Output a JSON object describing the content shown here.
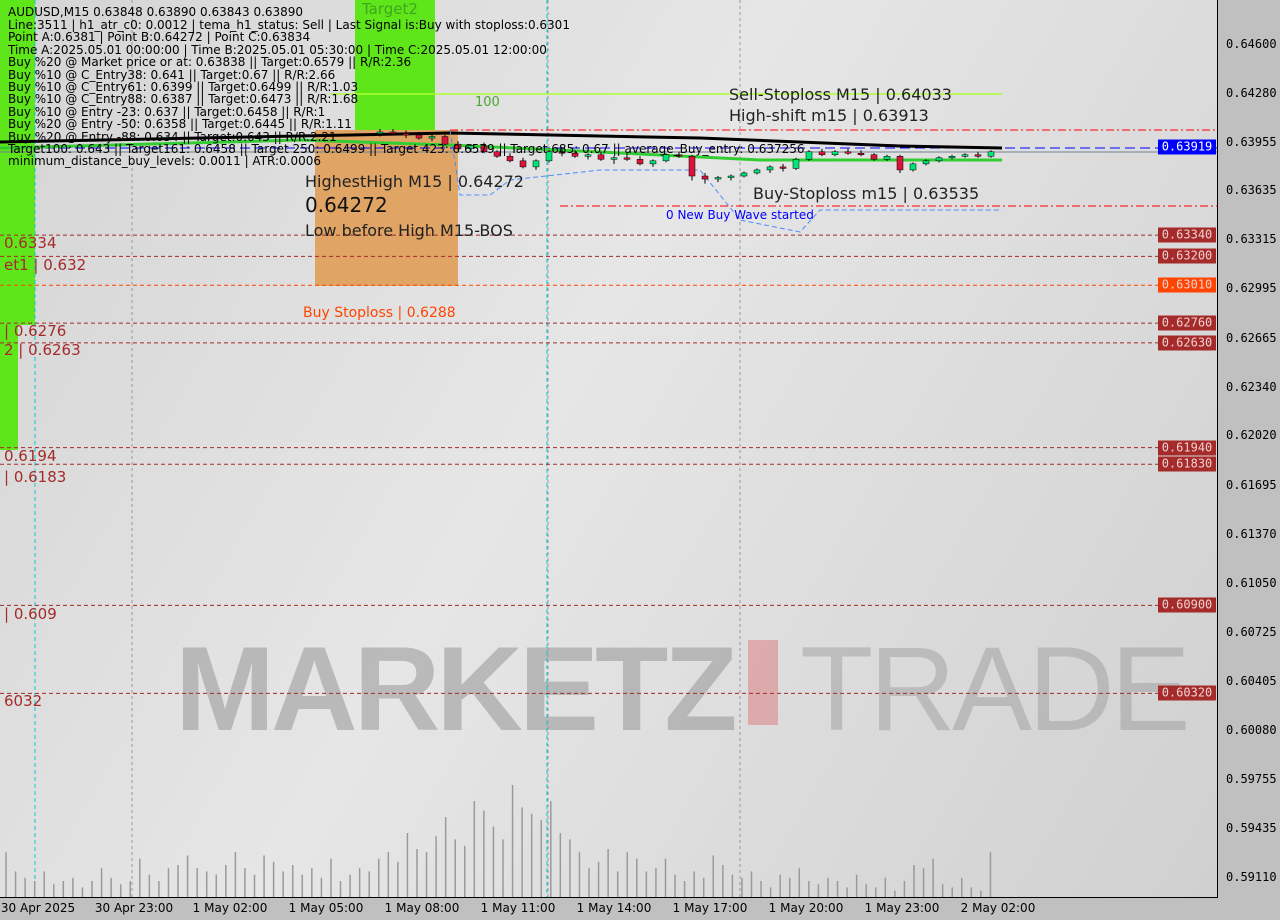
{
  "chart_data": {
    "type": "candlestick",
    "symbol_line": "AUDUSD,M15  0.63848 0.63890 0.63843 0.63890",
    "ylim": [
      0.5895,
      0.649
    ],
    "y_ticks": [
      "0.64600",
      "0.64280",
      "0.63955",
      "0.63635",
      "0.63315",
      "0.62995",
      "0.62665",
      "0.62340",
      "0.62020",
      "0.61695",
      "0.61370",
      "0.61050",
      "0.60725",
      "0.60405",
      "0.60080",
      "0.59755",
      "0.59435",
      "0.59110"
    ],
    "x_ticks": [
      "30 Apr 2025",
      "30 Apr 23:00",
      "1 May 02:00",
      "1 May 05:00",
      "1 May 08:00",
      "1 May 11:00",
      "1 May 14:00",
      "1 May 17:00",
      "1 May 20:00",
      "1 May 23:00",
      "2 May 02:00"
    ],
    "current_price": {
      "label": "0.63919",
      "color": "#0000ff"
    },
    "price_badges": [
      {
        "label": "0.63340",
        "color": "#a52a2a"
      },
      {
        "label": "0.63200",
        "color": "#a52a2a"
      },
      {
        "label": "0.63010",
        "color": "#ff4500"
      },
      {
        "label": "0.62760",
        "color": "#a52a2a"
      },
      {
        "label": "0.62630",
        "color": "#a52a2a"
      },
      {
        "label": "0.61940",
        "color": "#a52a2a"
      },
      {
        "label": "0.61830",
        "color": "#a52a2a"
      },
      {
        "label": "0.60900",
        "color": "#a52a2a"
      },
      {
        "label": "0.60320",
        "color": "#a52a2a"
      }
    ],
    "left_level_labels": [
      "0.6334",
      "et1 | 0.632",
      "| 0.6276",
      "2 | 0.6263",
      "0.6194",
      "| 0.6183",
      "| 0.609",
      "6032"
    ],
    "candles": [
      [
        0.6401,
        0.6404,
        0.6399,
        0.6402
      ],
      [
        0.6402,
        0.6404,
        0.64,
        0.6401
      ],
      [
        0.6401,
        0.6403,
        0.6398,
        0.64
      ],
      [
        0.64,
        0.6402,
        0.6397,
        0.6398
      ],
      [
        0.6398,
        0.6401,
        0.6396,
        0.6399
      ],
      [
        0.6399,
        0.64,
        0.6393,
        0.6394
      ],
      [
        0.6394,
        0.6396,
        0.639,
        0.6391
      ],
      [
        0.6391,
        0.6394,
        0.6389,
        0.6393
      ],
      [
        0.6393,
        0.6395,
        0.6388,
        0.6389
      ],
      [
        0.6389,
        0.639,
        0.6385,
        0.6386
      ],
      [
        0.6386,
        0.6388,
        0.6382,
        0.6383
      ],
      [
        0.6383,
        0.6385,
        0.6378,
        0.6379
      ],
      [
        0.6379,
        0.6384,
        0.6377,
        0.6383
      ],
      [
        0.6383,
        0.639,
        0.6382,
        0.6389
      ],
      [
        0.6389,
        0.6392,
        0.6386,
        0.6388
      ],
      [
        0.6388,
        0.639,
        0.6385,
        0.6386
      ],
      [
        0.6386,
        0.6388,
        0.6384,
        0.6387
      ],
      [
        0.6387,
        0.6389,
        0.6383,
        0.6384
      ],
      [
        0.6384,
        0.6386,
        0.6381,
        0.6385
      ],
      [
        0.6385,
        0.6388,
        0.6383,
        0.6384
      ],
      [
        0.6384,
        0.6386,
        0.638,
        0.6381
      ],
      [
        0.6381,
        0.6384,
        0.6379,
        0.6383
      ],
      [
        0.6383,
        0.6388,
        0.6382,
        0.6387
      ],
      [
        0.6387,
        0.6389,
        0.6385,
        0.6386
      ],
      [
        0.6386,
        0.6387,
        0.637,
        0.6373
      ],
      [
        0.6373,
        0.6375,
        0.6368,
        0.6371
      ],
      [
        0.6371,
        0.6373,
        0.6369,
        0.6372
      ],
      [
        0.6372,
        0.6374,
        0.637,
        0.6373
      ],
      [
        0.6373,
        0.6376,
        0.6372,
        0.6375
      ],
      [
        0.6375,
        0.6378,
        0.6374,
        0.6377
      ],
      [
        0.6377,
        0.638,
        0.6375,
        0.6379
      ],
      [
        0.6379,
        0.6381,
        0.6376,
        0.6378
      ],
      [
        0.6378,
        0.6385,
        0.6377,
        0.6384
      ],
      [
        0.6384,
        0.639,
        0.6383,
        0.6389
      ],
      [
        0.6389,
        0.6391,
        0.6386,
        0.6387
      ],
      [
        0.6387,
        0.639,
        0.6386,
        0.6389
      ],
      [
        0.6389,
        0.6391,
        0.6387,
        0.6388
      ],
      [
        0.6388,
        0.639,
        0.6386,
        0.6387
      ],
      [
        0.6387,
        0.6388,
        0.6383,
        0.6384
      ],
      [
        0.6384,
        0.6387,
        0.6383,
        0.6386
      ],
      [
        0.6386,
        0.6387,
        0.6375,
        0.6377
      ],
      [
        0.6377,
        0.6382,
        0.6376,
        0.6381
      ],
      [
        0.6381,
        0.6384,
        0.638,
        0.6383
      ],
      [
        0.6383,
        0.6386,
        0.6382,
        0.6385
      ],
      [
        0.6385,
        0.6387,
        0.6384,
        0.6386
      ],
      [
        0.6386,
        0.6388,
        0.6385,
        0.6387
      ],
      [
        0.6387,
        0.6389,
        0.6385,
        0.6386
      ],
      [
        0.6386,
        0.639,
        0.6385,
        0.6389
      ]
    ],
    "volume": [
      14,
      8,
      6,
      5,
      8,
      4,
      5,
      6,
      3,
      5,
      9,
      6,
      4,
      5,
      12,
      7,
      5,
      9,
      10,
      13,
      9,
      8,
      7,
      10,
      14,
      9,
      7,
      13,
      11,
      8,
      10,
      7,
      9,
      6,
      12,
      5,
      7,
      9,
      8,
      12,
      14,
      11,
      20,
      15,
      14,
      19,
      25,
      18,
      16,
      30,
      27,
      22,
      18,
      35,
      28,
      26,
      24,
      30,
      20,
      18,
      14,
      9,
      11,
      15,
      8,
      14,
      12,
      8,
      9,
      12,
      7,
      5,
      8,
      6,
      13,
      10,
      7,
      6,
      8,
      5,
      3,
      7,
      6,
      9,
      5,
      4,
      6,
      5,
      3,
      7,
      4,
      3,
      6,
      2,
      5,
      10,
      9,
      12,
      4,
      3,
      6,
      3,
      2,
      14
    ]
  },
  "info_lines": [
    "Line:3511 | h1_atr_c0: 0.0012 | tema_h1_status: Sell | Last Signal is:Buy with stoploss:0.6301",
    "Point A:0.6381 | Point B:0.64272 | Point C:0.63834",
    "Time A:2025.05.01 00:00:00 | Time B:2025.05.01 05:30:00 | Time C:2025.05.01 12:00:00",
    "Buy %20 @ Market price or at: 0.63838 || Target:0.6579 || R/R:2.36",
    "Buy %10 @ C_Entry38: 0.641 || Target:0.67 || R/R:2.66",
    "Buy %10 @ C_Entry61: 0.6399 || Target:0.6499 || R/R:1.03",
    "Buy %10 @ C_Entry88: 0.6387 || Target:0.6473 || R/R:1.68",
    "Buy %10 @ Entry -23: 0.637 || Target:0.6458 || R/R:1",
    "Buy %20 @ Entry -50: 0.6358 || Target:0.6445 || R/R:1.11",
    "Buy %20 @ Entry -88: 0.634 || Target:0.643 || R/R:2.21",
    "Target100: 0.643 || Target161: 0.6458 || Target 250: 0.6499 || Target 423: 0.6579 || Target 685: 0.67 || average_Buy_entry: 0.637256",
    "minimum_distance_buy_levels: 0.0011 | ATR:0.0006"
  ],
  "labels": {
    "highest_high": "HighestHigh   M15 | 0.64272",
    "high_value": "0.64272",
    "bos": "Low before High   M15-BOS",
    "sell_stoploss": "Sell-Stoploss M15 | 0.64033",
    "high_shift": "High-shift m15 | 0.63913",
    "buy_stoploss_m15": "Buy-Stoploss m15 | 0.63535",
    "new_wave": "0 New Buy Wave started",
    "buy_stoploss": "Buy Stoploss | 0.6288",
    "target2": "Target2",
    "level100": "100"
  },
  "watermark": {
    "left": "MARKETZ",
    "right": "TRADE"
  },
  "colors": {
    "bull": "#00e676",
    "bear": "#dc143c",
    "level": "#a52a2a",
    "green_zone": "#5fe61a",
    "orange_zone": "#e0a050"
  }
}
